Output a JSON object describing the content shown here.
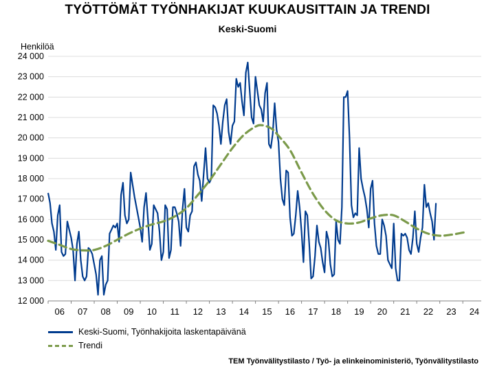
{
  "title": "TYÖTTÖMÄT TYÖNHAKIJAT KUUKAUSITTAIN JA TRENDI",
  "subtitle": "Keski-Suomi",
  "ylabel": "Henkilöä",
  "source": "TEM Työnvälitystilasto / Työ- ja elinkeinoministeriö, Työnvälitystilasto",
  "colors": {
    "main": "#003B8E",
    "trend": "#7B9A4A"
  },
  "chart_data": {
    "type": "line",
    "ylim": [
      12000,
      24000
    ],
    "xlim": [
      2006,
      2024.8
    ],
    "y_ticks": [
      {
        "value": 12000,
        "label": "12 000"
      },
      {
        "value": 13000,
        "label": "13 000"
      },
      {
        "value": 14000,
        "label": "14 000"
      },
      {
        "value": 15000,
        "label": "15 000"
      },
      {
        "value": 16000,
        "label": "16 000"
      },
      {
        "value": 17000,
        "label": "17 000"
      },
      {
        "value": 18000,
        "label": "18 000"
      },
      {
        "value": 19000,
        "label": "19 000"
      },
      {
        "value": 20000,
        "label": "20 000"
      },
      {
        "value": 21000,
        "label": "21 000"
      },
      {
        "value": 22000,
        "label": "22 000"
      },
      {
        "value": 23000,
        "label": "23 000"
      },
      {
        "value": 24000,
        "label": "24 000"
      }
    ],
    "x_ticks": [
      "06",
      "07",
      "08",
      "09",
      "10",
      "11",
      "12",
      "13",
      "14",
      "15",
      "16",
      "17",
      "18",
      "19",
      "20",
      "21",
      "22",
      "23",
      "24"
    ],
    "grid": true,
    "legend_position": "bottom-left",
    "series": [
      {
        "name": "Keski-Suomi, Työnhakijoita laskentapäivänä",
        "start_year": 2006,
        "values": [
          17300,
          16800,
          15800,
          15400,
          14500,
          16200,
          16700,
          14400,
          14200,
          14300,
          15900,
          15500,
          15100,
          14500,
          13000,
          14800,
          15400,
          14000,
          13200,
          13000,
          13200,
          14600,
          14500,
          14300,
          13800,
          13300,
          12300,
          14000,
          14200,
          12300,
          12800,
          13000,
          15300,
          15500,
          15700,
          15600,
          15800,
          14900,
          17200,
          17800,
          16200,
          15800,
          16000,
          18300,
          17700,
          17100,
          16600,
          16100,
          15600,
          14900,
          16600,
          17300,
          16000,
          14500,
          14800,
          16700,
          16500,
          16300,
          15400,
          14000,
          14400,
          16700,
          16500,
          14100,
          14500,
          16600,
          16600,
          16300,
          15900,
          14700,
          16500,
          17500,
          15600,
          15400,
          16200,
          16400,
          18600,
          18800,
          18200,
          17900,
          16900,
          18200,
          19500,
          18000,
          17800,
          18000,
          21600,
          21500,
          21200,
          20600,
          19700,
          20800,
          21600,
          21900,
          20300,
          19700,
          20600,
          20800,
          22900,
          22500,
          22700,
          21800,
          21100,
          23200,
          23700,
          22300,
          21000,
          20700,
          23000,
          22300,
          21600,
          21400,
          20800,
          22200,
          22700,
          19700,
          19500,
          20200,
          21700,
          20400,
          19800,
          18000,
          17000,
          16700,
          18400,
          18300,
          16100,
          15200,
          15300,
          16200,
          17400,
          16600,
          15400,
          13900,
          16400,
          16200,
          14800,
          13100,
          13200,
          14200,
          15700,
          14900,
          14600,
          13900,
          13400,
          15400,
          15000,
          13800,
          13200,
          13300,
          15900,
          15000,
          14800,
          16600,
          22000,
          22000,
          22300,
          20000,
          16700,
          16100,
          16300,
          16200,
          19500,
          18000,
          17500,
          17100,
          16500,
          15600,
          17500,
          17900,
          15800,
          14700,
          14300,
          14300,
          16000,
          15700,
          15200,
          14000,
          13800,
          13600,
          15800,
          13600,
          13000,
          13000,
          15300,
          15200,
          15300,
          15100,
          14500,
          14300,
          15100,
          16400,
          14800,
          14400,
          15100,
          15600,
          17700,
          16600,
          16800,
          16300,
          15900,
          15000,
          16800
        ]
      },
      {
        "name": "Trendi",
        "points": [
          [
            2006.0,
            14950
          ],
          [
            2006.5,
            14750
          ],
          [
            2007.0,
            14550
          ],
          [
            2007.5,
            14480
          ],
          [
            2008.0,
            14500
          ],
          [
            2008.5,
            14700
          ],
          [
            2009.0,
            15000
          ],
          [
            2009.5,
            15300
          ],
          [
            2010.0,
            15550
          ],
          [
            2010.5,
            15750
          ],
          [
            2011.0,
            15900
          ],
          [
            2011.5,
            16150
          ],
          [
            2012.0,
            16550
          ],
          [
            2012.5,
            17200
          ],
          [
            2013.0,
            17900
          ],
          [
            2013.5,
            18700
          ],
          [
            2014.0,
            19500
          ],
          [
            2014.5,
            20150
          ],
          [
            2015.0,
            20550
          ],
          [
            2015.3,
            20620
          ],
          [
            2015.7,
            20450
          ],
          [
            2016.0,
            20100
          ],
          [
            2016.5,
            19400
          ],
          [
            2017.0,
            18300
          ],
          [
            2017.5,
            17250
          ],
          [
            2018.0,
            16450
          ],
          [
            2018.5,
            15950
          ],
          [
            2019.0,
            15800
          ],
          [
            2019.5,
            15850
          ],
          [
            2020.0,
            16050
          ],
          [
            2020.5,
            16200
          ],
          [
            2021.0,
            16200
          ],
          [
            2021.5,
            15900
          ],
          [
            2022.0,
            15550
          ],
          [
            2022.5,
            15300
          ],
          [
            2023.0,
            15200
          ],
          [
            2023.5,
            15250
          ],
          [
            2024.0,
            15350
          ],
          [
            2024.15,
            15400
          ]
        ]
      }
    ]
  }
}
